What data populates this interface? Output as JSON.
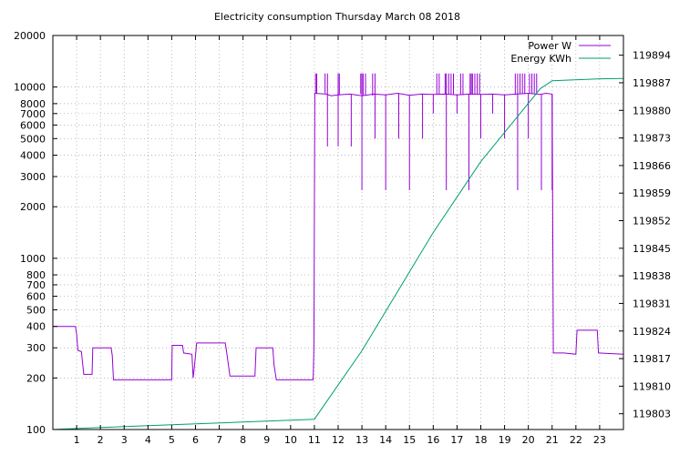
{
  "chart_data": {
    "type": "line",
    "title": "Electricity consumption Thursday March 08 2018",
    "xlabel": "",
    "ylabel": "",
    "xlim": [
      0,
      24
    ],
    "x_ticks": [
      1,
      2,
      3,
      4,
      5,
      6,
      7,
      8,
      9,
      10,
      11,
      12,
      13,
      14,
      15,
      16,
      17,
      18,
      19,
      20,
      21,
      22,
      23
    ],
    "ylim_left": [
      100,
      20000
    ],
    "y_scale_left": "log",
    "y_ticks_left": [
      100,
      200,
      300,
      400,
      500,
      600,
      700,
      800,
      1000,
      2000,
      3000,
      4000,
      5000,
      6000,
      7000,
      8000,
      10000,
      20000
    ],
    "ylim_right": [
      119799,
      119899
    ],
    "y_ticks_right": [
      119803,
      119810,
      119817,
      119824,
      119831,
      119838,
      119845,
      119852,
      119859,
      119866,
      119873,
      119880,
      119887,
      119894
    ],
    "grid": true,
    "legend_position": "top-right",
    "series": [
      {
        "name": "Power W",
        "axis": "left",
        "color": "#9400d3",
        "points": [
          [
            0,
            400
          ],
          [
            0.95,
            400
          ],
          [
            1.0,
            360
          ],
          [
            1.05,
            290
          ],
          [
            1.2,
            285
          ],
          [
            1.3,
            210
          ],
          [
            1.65,
            210
          ],
          [
            1.68,
            300
          ],
          [
            2.45,
            300
          ],
          [
            2.5,
            270
          ],
          [
            2.55,
            195
          ],
          [
            5.0,
            195
          ],
          [
            5.02,
            310
          ],
          [
            5.45,
            310
          ],
          [
            5.5,
            280
          ],
          [
            5.85,
            275
          ],
          [
            5.9,
            200
          ],
          [
            5.95,
            230
          ],
          [
            6.05,
            320
          ],
          [
            7.25,
            320
          ],
          [
            7.3,
            290
          ],
          [
            7.45,
            205
          ],
          [
            8.5,
            205
          ],
          [
            8.55,
            300
          ],
          [
            9.25,
            300
          ],
          [
            9.3,
            240
          ],
          [
            9.4,
            195
          ],
          [
            10.95,
            195
          ],
          [
            10.98,
            300
          ],
          [
            11.02,
            9200
          ],
          [
            11.5,
            9100
          ],
          [
            11.7,
            8900
          ],
          [
            12.0,
            9000
          ],
          [
            12.5,
            9100
          ],
          [
            13.0,
            8900
          ],
          [
            13.5,
            9100
          ],
          [
            14.0,
            9000
          ],
          [
            14.5,
            9200
          ],
          [
            15.0,
            8950
          ],
          [
            15.5,
            9100
          ],
          [
            16.0,
            9050
          ],
          [
            16.5,
            9100
          ],
          [
            17.0,
            9000
          ],
          [
            17.5,
            9100
          ],
          [
            18.0,
            9050
          ],
          [
            18.5,
            9100
          ],
          [
            19.0,
            9000
          ],
          [
            19.5,
            9100
          ],
          [
            20.0,
            9200
          ],
          [
            20.5,
            9050
          ],
          [
            20.75,
            9200
          ],
          [
            21.0,
            9100
          ],
          [
            21.05,
            280
          ],
          [
            21.5,
            280
          ],
          [
            22.0,
            275
          ],
          [
            22.05,
            380
          ],
          [
            22.9,
            380
          ],
          [
            22.95,
            280
          ],
          [
            24.0,
            275
          ]
        ],
        "spikes_down": [
          [
            11.55,
            4500
          ],
          [
            12.0,
            4500
          ],
          [
            12.55,
            4500
          ],
          [
            13.0,
            2500
          ],
          [
            13.55,
            5000
          ],
          [
            14.0,
            2500
          ],
          [
            14.55,
            5000
          ],
          [
            15.0,
            2500
          ],
          [
            15.55,
            5000
          ],
          [
            16.0,
            7000
          ],
          [
            16.55,
            2500
          ],
          [
            17.0,
            7000
          ],
          [
            17.5,
            2500
          ],
          [
            18.0,
            5000
          ],
          [
            18.5,
            7000
          ],
          [
            19.0,
            5000
          ],
          [
            19.55,
            2500
          ],
          [
            20.0,
            5000
          ],
          [
            20.55,
            2500
          ],
          [
            21.0,
            2500
          ]
        ],
        "spikes_up": [
          [
            11.05,
            12000
          ],
          [
            11.1,
            12000
          ],
          [
            11.45,
            12000
          ],
          [
            11.55,
            12000
          ],
          [
            12.0,
            12000
          ],
          [
            12.05,
            12000
          ],
          [
            12.95,
            12000
          ],
          [
            13.0,
            12000
          ],
          [
            13.05,
            12000
          ],
          [
            13.15,
            12000
          ],
          [
            13.45,
            12000
          ],
          [
            13.55,
            12000
          ],
          [
            16.15,
            12000
          ],
          [
            16.25,
            12000
          ],
          [
            16.5,
            12000
          ],
          [
            16.55,
            12000
          ],
          [
            16.65,
            12000
          ],
          [
            16.75,
            12000
          ],
          [
            16.85,
            12000
          ],
          [
            17.15,
            12000
          ],
          [
            17.25,
            12000
          ],
          [
            17.55,
            12000
          ],
          [
            17.6,
            12000
          ],
          [
            17.65,
            12000
          ],
          [
            17.75,
            12000
          ],
          [
            17.85,
            12000
          ],
          [
            17.95,
            12000
          ],
          [
            19.45,
            12000
          ],
          [
            19.55,
            12000
          ],
          [
            19.65,
            12000
          ],
          [
            19.75,
            12000
          ],
          [
            19.85,
            12000
          ],
          [
            20.05,
            12000
          ],
          [
            20.15,
            12000
          ],
          [
            20.25,
            12000
          ],
          [
            20.35,
            12000
          ]
        ]
      },
      {
        "name": "Energy KWh",
        "axis": "right",
        "color": "#009e73",
        "points": [
          [
            0,
            119799.0
          ],
          [
            2,
            119799.5
          ],
          [
            5,
            119800.2
          ],
          [
            8,
            119800.9
          ],
          [
            11,
            119801.6
          ],
          [
            13,
            119819
          ],
          [
            16,
            119849
          ],
          [
            18,
            119867
          ],
          [
            20.5,
            119885.5
          ],
          [
            21,
            119887.5
          ],
          [
            23,
            119888
          ],
          [
            24,
            119888.1
          ]
        ]
      }
    ]
  }
}
